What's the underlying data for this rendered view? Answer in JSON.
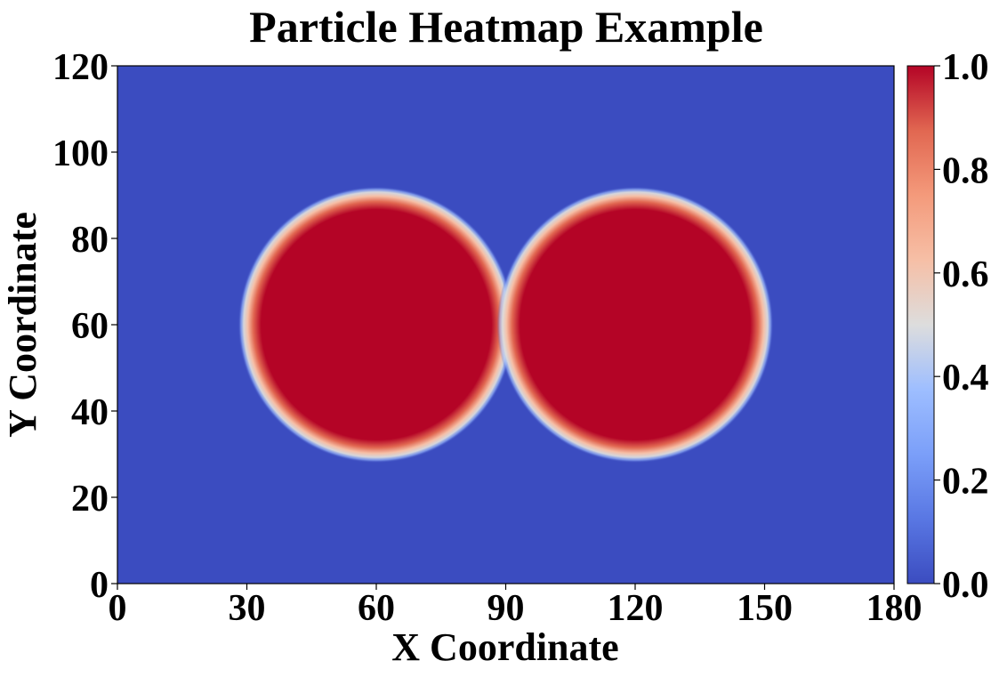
{
  "chart_data": {
    "type": "heatmap",
    "title": "Particle Heatmap Example",
    "xlabel": "X Coordinate",
    "ylabel": "Y Coordinate",
    "xlim": [
      0,
      180
    ],
    "ylim": [
      0,
      120
    ],
    "xticks": [
      0,
      30,
      60,
      90,
      120,
      150,
      180
    ],
    "yticks": [
      0,
      20,
      40,
      60,
      80,
      100,
      120
    ],
    "xtick_labels": [
      "0",
      "30",
      "60",
      "90",
      "120",
      "150",
      "180"
    ],
    "ytick_labels": [
      "0",
      "20",
      "40",
      "60",
      "80",
      "100",
      "120"
    ],
    "colormap": "coolwarm",
    "colormap_low": "#3b4cc0",
    "colormap_high": "#b40426",
    "value_range": [
      0.0,
      1.0
    ],
    "particles": [
      {
        "center": [
          60,
          60
        ],
        "radius": 30,
        "value": 1.0
      },
      {
        "center": [
          120,
          60
        ],
        "radius": 30,
        "value": 1.0
      }
    ],
    "background_value": 0.0,
    "colorbar": {
      "ticks": [
        0.0,
        0.2,
        0.4,
        0.6,
        0.8,
        1.0
      ],
      "tick_labels": [
        "0.0",
        "0.2",
        "0.4",
        "0.6",
        "0.8",
        "1.0"
      ]
    }
  }
}
